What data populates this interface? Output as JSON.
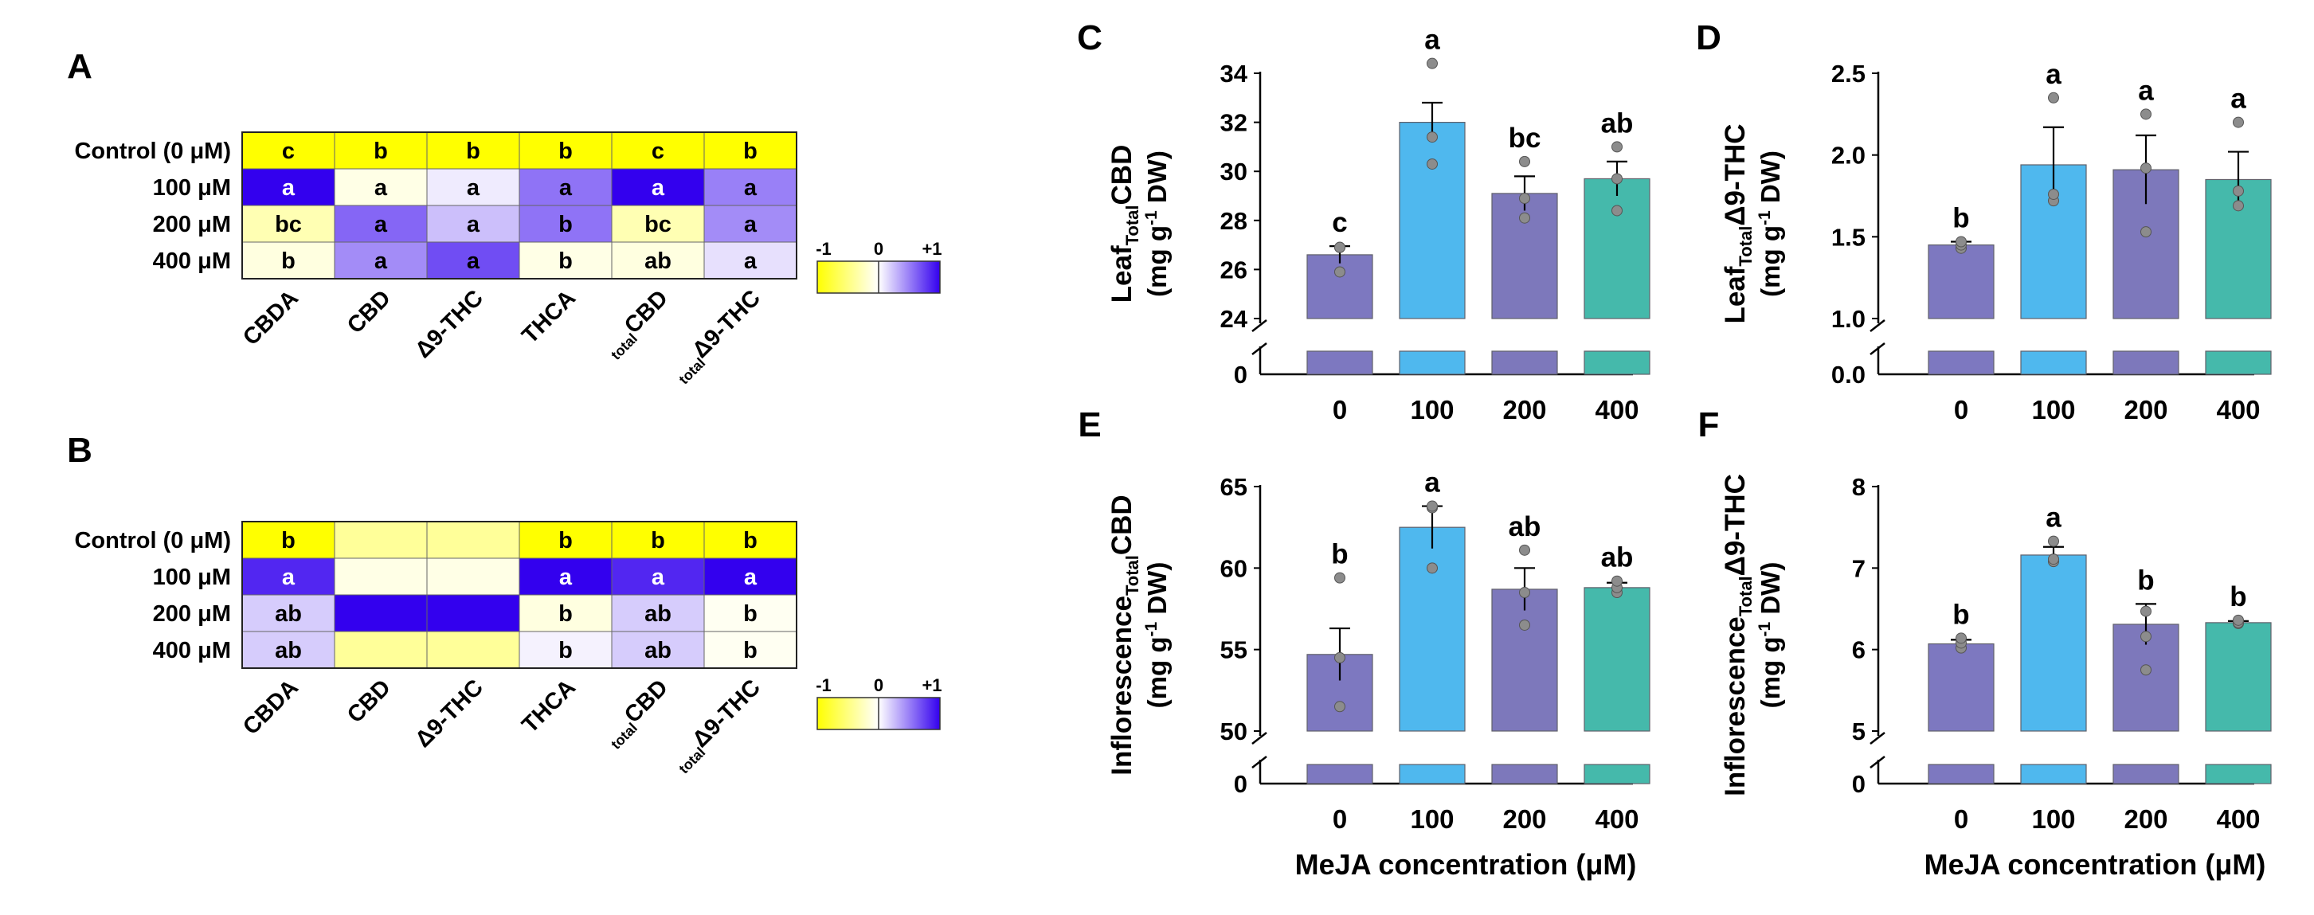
{
  "chart_data": [
    {
      "panel": "A",
      "type": "heatmap",
      "rows": [
        "Control (0 μM)",
        "100 μM",
        "200 μM",
        "400 μM"
      ],
      "columns": [
        "CBDA",
        "CBD",
        "Δ9-THC",
        "THCA",
        "totalCBD",
        "totalΔ9-THC"
      ],
      "column_labels": [
        {
          "main": "CBDA",
          "sub": ""
        },
        {
          "main": "CBD",
          "sub": ""
        },
        {
          "main": "Δ9-THC",
          "sub": ""
        },
        {
          "main": "THCA",
          "sub": ""
        },
        {
          "main": "CBD",
          "sub": "total"
        },
        {
          "main": "Δ9-THC",
          "sub": "total"
        }
      ],
      "values": [
        [
          -1.0,
          -1.0,
          -1.0,
          -1.0,
          -1.0,
          -1.0
        ],
        [
          1.0,
          -0.1,
          0.08,
          0.55,
          1.0,
          0.5
        ],
        [
          -0.3,
          0.6,
          0.25,
          0.55,
          -0.3,
          0.45
        ],
        [
          -0.12,
          0.45,
          0.7,
          -0.1,
          -0.12,
          0.12
        ]
      ],
      "letters": [
        [
          "c",
          "b",
          "b",
          "b",
          "c",
          "b"
        ],
        [
          "a",
          "a",
          "a",
          "a",
          "a",
          "a"
        ],
        [
          "bc",
          "a",
          "a",
          "b",
          "bc",
          "a"
        ],
        [
          "b",
          "a",
          "a",
          "b",
          "ab",
          "a"
        ]
      ],
      "scale": {
        "min_label": "-1",
        "mid_label": "0",
        "max_label": "+1",
        "min_color": "#ffff00",
        "mid_color": "#ffffff",
        "max_color": "#3300ee"
      }
    },
    {
      "panel": "B",
      "type": "heatmap",
      "rows": [
        "Control (0 μM)",
        "100 μM",
        "200 μM",
        "400 μM"
      ],
      "columns": [
        "CBDA",
        "CBD",
        "Δ9-THC",
        "THCA",
        "totalCBD",
        "totalΔ9-THC"
      ],
      "column_labels": [
        {
          "main": "CBDA",
          "sub": ""
        },
        {
          "main": "CBD",
          "sub": ""
        },
        {
          "main": "Δ9-THC",
          "sub": ""
        },
        {
          "main": "THCA",
          "sub": ""
        },
        {
          "main": "CBD",
          "sub": "total"
        },
        {
          "main": "Δ9-THC",
          "sub": "total"
        }
      ],
      "values": [
        [
          -1.0,
          -0.4,
          -0.4,
          -1.0,
          -1.0,
          -1.0
        ],
        [
          0.85,
          -0.1,
          -0.1,
          1.0,
          0.85,
          1.0
        ],
        [
          0.2,
          1.0,
          1.0,
          -0.12,
          0.2,
          -0.05
        ],
        [
          0.2,
          -0.4,
          -0.4,
          0.05,
          0.2,
          -0.05
        ]
      ],
      "letters": [
        [
          "b",
          "",
          "",
          "b",
          "b",
          "b"
        ],
        [
          "a",
          "",
          "",
          "a",
          "a",
          "a"
        ],
        [
          "ab",
          "",
          "",
          "b",
          "ab",
          "b"
        ],
        [
          "ab",
          "",
          "",
          "b",
          "ab",
          "b"
        ]
      ],
      "scale": {
        "min_label": "-1",
        "mid_label": "0",
        "max_label": "+1",
        "min_color": "#ffff00",
        "mid_color": "#ffffff",
        "max_color": "#3300ee"
      }
    },
    {
      "panel": "C",
      "type": "bar",
      "categories": [
        "0",
        "100",
        "200",
        "400"
      ],
      "values": [
        26.6,
        32.0,
        29.1,
        29.7
      ],
      "errors": [
        0.35,
        0.8,
        0.7,
        0.7
      ],
      "points": [
        [
          25.9,
          26.9,
          26.9
        ],
        [
          30.3,
          31.4,
          34.4
        ],
        [
          28.1,
          28.9,
          30.4
        ],
        [
          28.4,
          29.7,
          31.0
        ]
      ],
      "letters": [
        "c",
        "a",
        "bc",
        "ab"
      ],
      "ylabel": {
        "pre": "Leaf",
        "sub": "Total",
        "main": "CBD",
        "unit": "(mg g",
        "sup": "-1",
        "unit_end": " DW)"
      },
      "ylim": [
        24,
        34
      ],
      "yticks": [
        24,
        26,
        28,
        30,
        32,
        34
      ],
      "break_label": "0",
      "xlabel": ""
    },
    {
      "panel": "D",
      "type": "bar",
      "categories": [
        "0",
        "100",
        "200",
        "400"
      ],
      "values": [
        1.45,
        1.94,
        1.91,
        1.85
      ],
      "errors": [
        0.02,
        0.23,
        0.21,
        0.17
      ],
      "points": [
        [
          1.43,
          1.45,
          1.47
        ],
        [
          1.72,
          1.76,
          2.35
        ],
        [
          1.53,
          1.92,
          2.25
        ],
        [
          1.69,
          1.78,
          2.2
        ]
      ],
      "letters": [
        "b",
        "a",
        "a",
        "a"
      ],
      "ylabel": {
        "pre": "Leaf",
        "sub": "Total",
        "main": "Δ9-THC",
        "unit": "(mg g",
        "sup": "-1",
        "unit_end": " DW)"
      },
      "ylim": [
        1.0,
        2.5
      ],
      "yticks": [
        "1.0",
        "1.5",
        "2.0",
        "2.5"
      ],
      "break_label": "0.0",
      "xlabel": ""
    },
    {
      "panel": "E",
      "type": "bar",
      "categories": [
        "0",
        "100",
        "200",
        "400"
      ],
      "values": [
        54.7,
        62.5,
        58.7,
        58.8
      ],
      "errors": [
        1.6,
        1.3,
        1.3,
        0.3
      ],
      "points": [
        [
          51.5,
          54.5,
          59.4
        ],
        [
          60.0,
          63.7,
          63.8
        ],
        [
          56.5,
          58.5,
          61.1
        ],
        [
          58.5,
          58.8,
          59.2
        ]
      ],
      "letters": [
        "b",
        "a",
        "ab",
        "ab"
      ],
      "ylabel": {
        "pre": "Inflorescence",
        "sub": "Total",
        "main": "CBD",
        "unit": "(mg g",
        "sup": "-1",
        "unit_end": " DW)"
      },
      "ylim": [
        50,
        65
      ],
      "yticks": [
        50,
        55,
        60,
        65
      ],
      "break_label": "0",
      "xlabel": "MeJA concentration (μM)"
    },
    {
      "panel": "F",
      "type": "bar",
      "categories": [
        "0",
        "100",
        "200",
        "400"
      ],
      "values": [
        6.07,
        7.16,
        6.31,
        6.33
      ],
      "errors": [
        0.05,
        0.1,
        0.25,
        0.02
      ],
      "points": [
        [
          6.02,
          6.08,
          6.14
        ],
        [
          7.08,
          7.11,
          7.33
        ],
        [
          5.75,
          6.16,
          6.47
        ],
        [
          6.32,
          6.33,
          6.36
        ]
      ],
      "letters": [
        "b",
        "a",
        "b",
        "b"
      ],
      "ylabel": {
        "pre": "Inflorescence",
        "sub": "Total",
        "main": "Δ9-THC",
        "unit": "(mg g",
        "sup": "-1",
        "unit_end": " DW)"
      },
      "ylim": [
        5,
        8
      ],
      "yticks": [
        5,
        6,
        7,
        8
      ],
      "break_label": "0",
      "xlabel": "MeJA concentration (μM)"
    }
  ],
  "colors": {
    "bar_colors": [
      "#7d78c0",
      "#4fb8ee",
      "#7d78bb",
      "#45b9ab"
    ],
    "bar_edge": "#60606a",
    "point": "#8c8c8c",
    "point_edge": "#555555",
    "text": "#000000"
  }
}
